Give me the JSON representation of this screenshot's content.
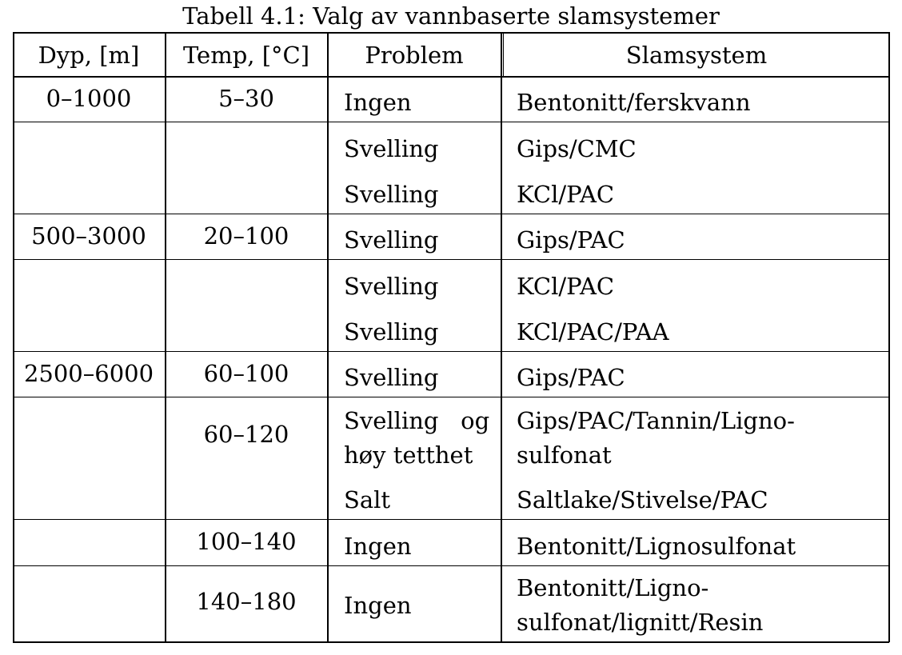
{
  "caption": "Tabell 4.1: Valg av vannbaserte slamsystemer",
  "headers": [
    "Dyp, [m]",
    "Temp, [°C]",
    "Problem",
    "Slamsystem"
  ],
  "groups": [
    {
      "depth": "0–1000",
      "rows": [
        {
          "temp": "5–30",
          "problem": "Ingen",
          "system": "Bentonitt/ferskvann"
        }
      ]
    },
    {
      "depth": "",
      "rows": [
        {
          "temp": "",
          "problem": "Svelling",
          "system": "Gips/CMC"
        },
        {
          "temp": "",
          "problem": "Svelling",
          "system": "KCl/PAC"
        }
      ]
    },
    {
      "depth": "500–3000",
      "rows": [
        {
          "temp": "20–100",
          "problem": "Svelling",
          "system": "Gips/PAC"
        }
      ]
    },
    {
      "depth": "",
      "rows": [
        {
          "temp": "",
          "problem": "Svelling",
          "system": "KCl/PAC"
        },
        {
          "temp": "",
          "problem": "Svelling",
          "system": "KCl/PAC/PAA"
        }
      ]
    },
    {
      "depth": "2500–6000",
      "rows": [
        {
          "temp": "60–100",
          "problem": "Svelling",
          "system": "Gips/PAC"
        }
      ]
    },
    {
      "depth": "",
      "rows": [
        {
          "temp": "60–120",
          "problem_line1": "Svelling   og",
          "problem_line2": "høy tetthet",
          "system_line1": "Gips/PAC/Tannin/Ligno-",
          "system_line2": "sulfonat"
        },
        {
          "temp": "",
          "problem": "Salt",
          "system": "Saltlake/Stivelse/PAC"
        }
      ]
    },
    {
      "depth": "",
      "rows": [
        {
          "temp": "100–140",
          "problem": "Ingen",
          "system": "Bentonitt/Lignosulfonat"
        }
      ]
    },
    {
      "depth": "",
      "rows": [
        {
          "temp": "140–180",
          "problem": "Ingen",
          "system_line1": "Bentonitt/Ligno-",
          "system_line2": "sulfonat/lignitt/Resin"
        }
      ]
    }
  ]
}
